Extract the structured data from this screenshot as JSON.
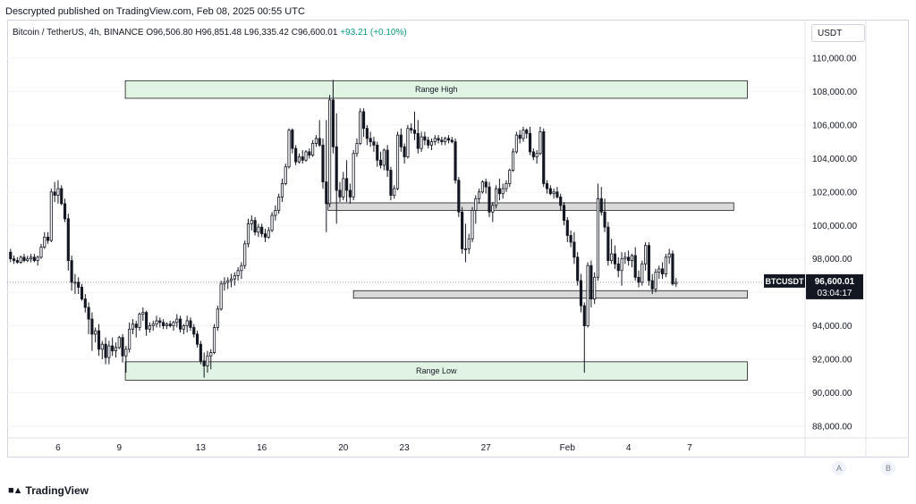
{
  "header": {
    "published": "Descrypted published on TradingView.com, Feb 08, 2025 00:55 UTC"
  },
  "legend": {
    "symbol": "Bitcoin / TetherUS, 4h, BINANCE",
    "open": "O96,506.80",
    "high": "H96,851.48",
    "low": "L96,335.42",
    "close": "C96,600.01",
    "change": "+93.21 (+0.10%)"
  },
  "currency_button": "USDT",
  "footer": {
    "brand": "TradingView",
    "scale_a": "A",
    "scale_b": "B"
  },
  "colors": {
    "up": "#131722",
    "down": "#131722",
    "zone_fill": "#e1f3e2",
    "zone_border": "#1b1b1b",
    "level_fill": "#d9d9d9"
  },
  "chart_data": {
    "type": "candlestick",
    "symbol": "BTCUSDT",
    "timeframe": "4h",
    "y_axis": {
      "ticks": [
        88000,
        90000,
        92000,
        94000,
        96000,
        98000,
        100000,
        102000,
        104000,
        106000,
        108000,
        110000
      ],
      "tick_labels": [
        "88,000.00",
        "90,000.00",
        "92,000.00",
        "94,000.00",
        "96,000.00",
        "98,000.00",
        "100,000.00",
        "102,000.00",
        "104,000.00",
        "106,000.00",
        "108,000.00",
        "110,000.00"
      ],
      "ylim": [
        87300,
        112300
      ]
    },
    "x_axis": {
      "ticks": [
        {
          "label": "6",
          "t": 14
        },
        {
          "label": "9",
          "t": 32
        },
        {
          "label": "13",
          "t": 56
        },
        {
          "label": "16",
          "t": 74
        },
        {
          "label": "20",
          "t": 98
        },
        {
          "label": "23",
          "t": 116
        },
        {
          "label": "27",
          "t": 140
        },
        {
          "label": "Feb",
          "t": 164
        },
        {
          "label": "4",
          "t": 182
        },
        {
          "label": "7",
          "t": 200
        }
      ],
      "tlim": [
        -1,
        234
      ]
    },
    "last_price": {
      "symbol_label": "BTCUSDT",
      "price": "96,600.01",
      "value": 96600.01,
      "countdown": "03:04:17"
    },
    "zones": [
      {
        "name": "Range High",
        "label": "Range High",
        "t0": 33.8,
        "t1": 217,
        "y0": 107600,
        "y1": 108650
      },
      {
        "name": "Range Low",
        "label": "Range Low",
        "t0": 33.8,
        "t1": 217,
        "y0": 90750,
        "y1": 91850
      },
      {
        "name": "resistance",
        "label": "",
        "t0": 93.5,
        "t1": 213,
        "y0": 100900,
        "y1": 101350
      },
      {
        "name": "support",
        "label": "",
        "t0": 101,
        "t1": 217,
        "y0": 95650,
        "y1": 96100
      }
    ],
    "candles": [
      [
        98400,
        98600,
        97800,
        98000
      ],
      [
        98000,
        98200,
        97700,
        97900
      ],
      [
        97900,
        98100,
        97700,
        97800
      ],
      [
        97800,
        98200,
        97700,
        98100
      ],
      [
        98100,
        98300,
        97800,
        97900
      ],
      [
        97900,
        98200,
        97800,
        98000
      ],
      [
        98000,
        98300,
        97800,
        98100
      ],
      [
        98100,
        98300,
        97800,
        97900
      ],
      [
        97900,
        98200,
        97600,
        98100
      ],
      [
        98100,
        98900,
        98000,
        98700
      ],
      [
        98700,
        99600,
        98600,
        99300
      ],
      [
        99300,
        99600,
        98900,
        99100
      ],
      [
        99100,
        102200,
        99000,
        102000
      ],
      [
        102000,
        102600,
        101400,
        101800
      ],
      [
        101800,
        102700,
        101300,
        102200
      ],
      [
        102200,
        102400,
        101200,
        101300
      ],
      [
        101300,
        101600,
        100200,
        100400
      ],
      [
        100400,
        100700,
        97300,
        97900
      ],
      [
        97900,
        98200,
        96100,
        96600
      ],
      [
        96600,
        97100,
        95900,
        96600
      ],
      [
        96600,
        96900,
        95900,
        96300
      ],
      [
        96300,
        96500,
        95500,
        95600
      ],
      [
        95600,
        95900,
        94800,
        95100
      ],
      [
        95100,
        95400,
        93500,
        94400
      ],
      [
        94400,
        94800,
        92500,
        93500
      ],
      [
        93500,
        93900,
        93000,
        93700
      ],
      [
        93700,
        94100,
        92200,
        92600
      ],
      [
        92600,
        93100,
        92000,
        92900
      ],
      [
        92900,
        93300,
        91700,
        92100
      ],
      [
        92100,
        93100,
        91700,
        92800
      ],
      [
        92800,
        93300,
        92200,
        92500
      ],
      [
        92500,
        93000,
        92100,
        92700
      ],
      [
        92700,
        93400,
        92600,
        93300
      ],
      [
        93300,
        93500,
        91800,
        92200
      ],
      [
        92200,
        92800,
        91200,
        92600
      ],
      [
        92600,
        94200,
        92400,
        93800
      ],
      [
        93800,
        94400,
        93500,
        94100
      ],
      [
        94100,
        94300,
        93300,
        93900
      ],
      [
        93900,
        94800,
        93700,
        94700
      ],
      [
        94700,
        95100,
        94300,
        94800
      ],
      [
        94800,
        94900,
        93400,
        93800
      ],
      [
        93800,
        94200,
        93600,
        94000
      ],
      [
        94000,
        94300,
        93700,
        94100
      ],
      [
        94100,
        94600,
        93900,
        94300
      ],
      [
        94300,
        94500,
        93900,
        94200
      ],
      [
        94200,
        94400,
        93800,
        94000
      ],
      [
        94000,
        94200,
        93800,
        94100
      ],
      [
        94100,
        94300,
        93900,
        94000
      ],
      [
        94000,
        94300,
        93700,
        94200
      ],
      [
        94200,
        94700,
        93900,
        94400
      ],
      [
        94400,
        94600,
        93600,
        93800
      ],
      [
        93800,
        94100,
        93500,
        94000
      ],
      [
        94000,
        94600,
        93600,
        94300
      ],
      [
        94300,
        94500,
        93700,
        93900
      ],
      [
        93900,
        94100,
        93300,
        93500
      ],
      [
        93500,
        93700,
        92700,
        92900
      ],
      [
        92900,
        93100,
        91700,
        91900
      ],
      [
        91900,
        92400,
        90900,
        91600
      ],
      [
        91600,
        92500,
        91200,
        92200
      ],
      [
        92200,
        92600,
        91400,
        92400
      ],
      [
        92400,
        94100,
        92300,
        93900
      ],
      [
        93900,
        95200,
        93700,
        95000
      ],
      [
        95000,
        96700,
        94900,
        96500
      ],
      [
        96500,
        96900,
        96100,
        96600
      ],
      [
        96600,
        96900,
        96200,
        96700
      ],
      [
        96700,
        97100,
        96300,
        96800
      ],
      [
        96800,
        97200,
        96400,
        97000
      ],
      [
        97000,
        97500,
        96700,
        97300
      ],
      [
        97300,
        97800,
        96800,
        97600
      ],
      [
        97600,
        99100,
        97400,
        98900
      ],
      [
        98900,
        100400,
        98700,
        100100
      ],
      [
        100100,
        100600,
        99700,
        100300
      ],
      [
        100300,
        100500,
        99400,
        99600
      ],
      [
        99600,
        100100,
        99300,
        99900
      ],
      [
        99900,
        100100,
        99300,
        99500
      ],
      [
        99500,
        99800,
        99000,
        99300
      ],
      [
        99300,
        99900,
        99200,
        99700
      ],
      [
        99700,
        100800,
        99600,
        100600
      ],
      [
        100600,
        101200,
        100300,
        100900
      ],
      [
        100900,
        101900,
        100700,
        101700
      ],
      [
        101700,
        102800,
        101400,
        102500
      ],
      [
        102500,
        103700,
        102400,
        103500
      ],
      [
        103500,
        105800,
        103400,
        105700
      ],
      [
        105700,
        105800,
        104300,
        104600
      ],
      [
        104600,
        104800,
        103600,
        103800
      ],
      [
        103800,
        104300,
        103700,
        104100
      ],
      [
        104100,
        104500,
        103700,
        103900
      ],
      [
        103900,
        104500,
        103800,
        104400
      ],
      [
        104400,
        104600,
        104000,
        104200
      ],
      [
        104200,
        105100,
        104100,
        104900
      ],
      [
        104900,
        105400,
        104700,
        105200
      ],
      [
        105200,
        106300,
        104700,
        104800
      ],
      [
        104800,
        105200,
        102200,
        102600
      ],
      [
        102600,
        106300,
        99600,
        101300
      ],
      [
        101300,
        107800,
        101100,
        107500
      ],
      [
        107500,
        108700,
        104300,
        104700
      ],
      [
        104700,
        106700,
        100100,
        102100
      ],
      [
        102100,
        102600,
        101400,
        101700
      ],
      [
        101700,
        103200,
        101500,
        102800
      ],
      [
        102800,
        103900,
        101400,
        102100
      ],
      [
        102100,
        102500,
        101300,
        101700
      ],
      [
        101700,
        104500,
        101500,
        104300
      ],
      [
        104300,
        105200,
        104100,
        104900
      ],
      [
        104900,
        107000,
        104800,
        106800
      ],
      [
        106800,
        107000,
        105300,
        105800
      ],
      [
        105800,
        106000,
        104800,
        105200
      ],
      [
        105200,
        105600,
        104700,
        105000
      ],
      [
        105000,
        105300,
        104400,
        104800
      ],
      [
        104800,
        105000,
        103500,
        103900
      ],
      [
        103900,
        104400,
        103400,
        103600
      ],
      [
        103600,
        104600,
        103300,
        104500
      ],
      [
        104500,
        104800,
        102900,
        103300
      ],
      [
        103300,
        103500,
        101500,
        101800
      ],
      [
        101800,
        102400,
        101600,
        102200
      ],
      [
        102200,
        105600,
        102100,
        105400
      ],
      [
        105400,
        105800,
        104400,
        104700
      ],
      [
        104700,
        104900,
        103700,
        104100
      ],
      [
        104100,
        106000,
        104000,
        105800
      ],
      [
        105800,
        106100,
        105500,
        105700
      ],
      [
        105700,
        106800,
        105100,
        105500
      ],
      [
        105500,
        106300,
        104300,
        104600
      ],
      [
        104600,
        105600,
        104400,
        105300
      ],
      [
        105300,
        105600,
        104800,
        105100
      ],
      [
        105100,
        105300,
        104600,
        104800
      ],
      [
        104800,
        105200,
        104500,
        105000
      ],
      [
        105000,
        105400,
        104800,
        105200
      ],
      [
        105200,
        105400,
        104900,
        105100
      ],
      [
        105100,
        105300,
        104800,
        105000
      ],
      [
        105000,
        105300,
        104800,
        105200
      ],
      [
        105200,
        105400,
        104900,
        105100
      ],
      [
        105100,
        105300,
        104900,
        105000
      ],
      [
        105000,
        105200,
        102500,
        102700
      ],
      [
        102700,
        102900,
        100500,
        100800
      ],
      [
        100800,
        101100,
        98300,
        98600
      ],
      [
        98600,
        100100,
        97800,
        98600
      ],
      [
        98600,
        99500,
        98300,
        99200
      ],
      [
        99200,
        101100,
        99000,
        100900
      ],
      [
        100900,
        101800,
        100100,
        101600
      ],
      [
        101600,
        102200,
        101300,
        102000
      ],
      [
        102000,
        102700,
        101900,
        102600
      ],
      [
        102600,
        102800,
        101900,
        102300
      ],
      [
        102300,
        102600,
        100500,
        100800
      ],
      [
        100800,
        101400,
        100200,
        101200
      ],
      [
        101200,
        102400,
        101000,
        102200
      ],
      [
        102200,
        102800,
        101500,
        101900
      ],
      [
        101900,
        102500,
        101600,
        102200
      ],
      [
        102200,
        102700,
        102000,
        102500
      ],
      [
        102500,
        103400,
        102300,
        103300
      ],
      [
        103300,
        104600,
        103200,
        104400
      ],
      [
        104400,
        105600,
        104300,
        105400
      ],
      [
        105400,
        105700,
        104900,
        105200
      ],
      [
        105200,
        105900,
        105000,
        105700
      ],
      [
        105700,
        105800,
        105200,
        105500
      ],
      [
        105500,
        105900,
        104200,
        104400
      ],
      [
        104400,
        104600,
        103900,
        104100
      ],
      [
        104100,
        104500,
        103700,
        104300
      ],
      [
        104300,
        105900,
        104200,
        105600
      ],
      [
        105600,
        105800,
        102300,
        102500
      ],
      [
        102500,
        102700,
        101900,
        102200
      ],
      [
        102200,
        102400,
        101800,
        101900
      ],
      [
        101900,
        102200,
        101600,
        102000
      ],
      [
        102000,
        102300,
        101600,
        101700
      ],
      [
        101700,
        101900,
        100900,
        101200
      ],
      [
        101200,
        101400,
        100000,
        100300
      ],
      [
        100300,
        100500,
        99000,
        99400
      ],
      [
        99400,
        99700,
        98700,
        99000
      ],
      [
        99000,
        99600,
        97700,
        98100
      ],
      [
        98100,
        98400,
        96400,
        96700
      ],
      [
        96700,
        97100,
        94800,
        95200
      ],
      [
        95200,
        95400,
        91200,
        94000
      ],
      [
        94000,
        97800,
        93900,
        97600
      ],
      [
        97600,
        97900,
        95100,
        95600
      ],
      [
        95600,
        97200,
        95300,
        96900
      ],
      [
        96900,
        102500,
        96700,
        101600
      ],
      [
        101600,
        102300,
        100600,
        100800
      ],
      [
        100800,
        101600,
        99600,
        99900
      ],
      [
        99900,
        100200,
        97600,
        97900
      ],
      [
        97900,
        99200,
        97700,
        98300
      ],
      [
        98300,
        98800,
        97400,
        97700
      ],
      [
        97700,
        98100,
        96900,
        97300
      ],
      [
        97300,
        98400,
        96400,
        98000
      ],
      [
        98000,
        98400,
        97700,
        98100
      ],
      [
        98100,
        98500,
        97600,
        97900
      ],
      [
        97900,
        98300,
        97500,
        98200
      ],
      [
        98200,
        98700,
        96700,
        96900
      ],
      [
        96900,
        97300,
        96300,
        96600
      ],
      [
        96600,
        97900,
        96400,
        97700
      ],
      [
        97700,
        99000,
        97300,
        98800
      ],
      [
        98800,
        99000,
        96400,
        96700
      ],
      [
        96700,
        97100,
        95900,
        96200
      ],
      [
        96200,
        97400,
        96000,
        97200
      ],
      [
        97200,
        97600,
        96800,
        97400
      ],
      [
        97400,
        97800,
        96800,
        97100
      ],
      [
        97100,
        98300,
        96900,
        98100
      ],
      [
        98100,
        98600,
        97700,
        98300
      ],
      [
        98300,
        98500,
        96400,
        96500
      ],
      [
        96506.8,
        96851.48,
        96335.42,
        96600.01
      ]
    ]
  }
}
